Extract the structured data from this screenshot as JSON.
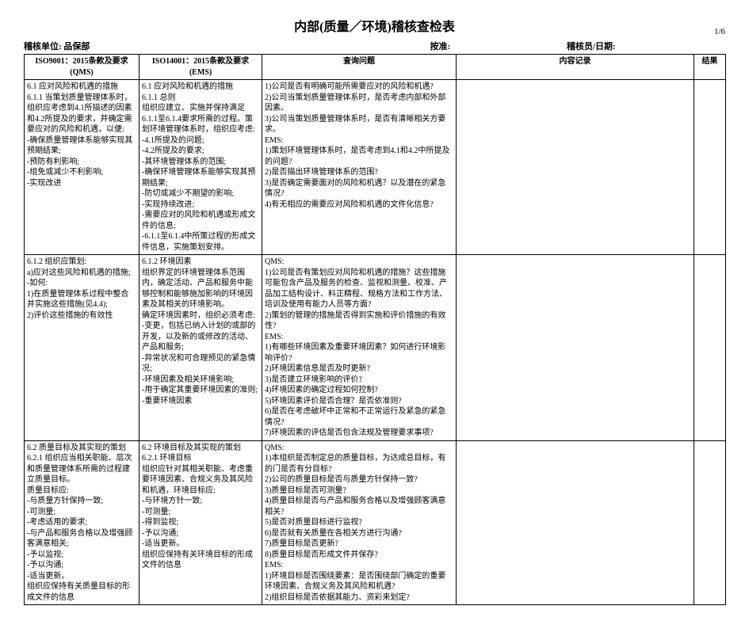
{
  "doc": {
    "title": "内部(质量／环境)稽核查检表",
    "page_indicator": "1/6",
    "unit_label": "稽核单位: ",
    "unit_value": "品保部",
    "basis_label": "按准:",
    "auditor_date_label": "稽核员/日期:"
  },
  "columns": {
    "qms": "ISO9001：2015条款及要求(QMS)",
    "ems": "ISO14001：2015条款及要求(EMS)",
    "question": "查询问题",
    "record": "内容记录",
    "result": "结果"
  },
  "rows": [
    {
      "qms": "6.1 应对风险和机遇的措施\n6.1.1 当策划质量管理体系时，组织应考虑到4.1所描述的因素和4.2所提及的要求，并确定需要应对的风险和机遇，以便:\n-确保质量管理体系能够实现其预期结果;\n-预防有利影响;\n-组免或减少不利影响;\n-实现改进",
      "ems": "6.1 应对风险和机遇的措施\n6.1.1 总则\n组织应建立、实施并保持满足6.1.1至6.1.4要求所需的过程。策划环境管理体系时，组织应考虑:\n-4.1所提及的问题;\n-4.2所提及的要求;\n-其环境管理体系的范围;\n-确保环境管理体系能够实现其预期结果;\n-防切或减少不期望的影响;\n-实现持续改进;\n-需要应对的风险和机遇或形成文件的信息;\n-6.1.1至6.1.4中所策过程的形成文件信息，实施策划安排。",
      "question": "1)公司是否有明确可能所需要应对的风险和机遇?\n2)公司当策划质量管理体系时，是否考虑内部和外部因素。\n3)公司当策划质量管理体系时，是否有清晰相关方要求。\nEMS:\n1)策划环境管理体系时，是否考虑到4.1和4.2中所提及的问题?\n2)是否描出环境管理体系的范围?\n3)是否确定需要面对的风险和机遇？以及潜在的紧急情况?\n4)有无相应的需要应对风险和机遇的文件化信息?",
      "record": "",
      "result": ""
    },
    {
      "qms": "6.1.2 组织应策划:\na)应对这些风险和机遇的措施;\n-如何:\n1)在质量管理体系过程中整合并实施这些措施(见4.4);\n2)评价这些措施的有效性",
      "ems": "6.1.2 环境因素\n组织界定的环境管理体系范围内，确定活动、产品和服务中能够控制和能够施加影响的环境因素及其相关的环境影响。\n确定环境因素时，组织必须考虑:\n-变更，包括已纳入计划的或部的开发，以及新的或修改的活动、产品和服务;\n-异常状况和可合理预见的紧急情况;\n-环境因素及相关环境影响;\n-用于确定其重要环境因素的准则;\n-重要环境因素",
      "question": "QMS:\n1)公司是否有策划应对风险和机遇的措施？这些措施可能包含产品及服务的检查、监视和测量、校准、产品加工结构设计、料正精程、规格方法和工作方法、培训及使用有能力人员等方面?\n2)策划的管理的措施是否得到实施和评价措施的有效性?\nEMS:\n1)有哪些环境因素及重要环境因素？如何进行环境影响评价?\n2)环境因素信息是否及时更新?\n3)是否建立环境影响的评价?\n4)环境因素的确定过程如何控制?\n5)环境因素评价是否合理？是否依准则?\n6)是否在考虑破坏中正常和不正常运行及紧急的紧急情况?\n7)环境因素的评估是否包含法规及管理要求事项?",
      "record": "",
      "result": ""
    },
    {
      "qms": "6.2 质量目标及其实现的策划\n6.2.1 组织应当相关职能、层次和质量管理体系所需的过程建立质量目标。\n质量目标应:\n-与质量方针保持一致;\n-可测量;\n-考虑适用的要求;\n-与产品和服务合格以及增强顾客满意相关;\n-予以监视;\n-予以沟通;\n-适当更新。\n组织应保持有关质量目标的形成文件的信息",
      "ems": "6.2 环境目标及其实现的策划\n6.2.1 环境目标\n组织应针对其相关职能、考虑重要环境因素、合规义务及其风险和机遇，环境目标应:\n-与环境方针一致;\n-可测量;\n-得到监视;\n-予以沟通;\n-适当更新。\n组织应保持有关环境目标的形成文件的信息",
      "question": "QMS:\n1)本组织是否制定总的质量目标，为达成总目标，有的门是否有分目标?\n2)公司的质量目标是否与质量方针保持一致?\n3)质量目标是否可测量?\n4)质量目标是否与产品和服务合格以及增强顾客满意相关?\n5)是否对质量目标进行监视?\n6)是否就有关质量在各相关方进行沟通?\n7)质量目标是否更新?\n8)质量目标是否形成文件并保存?\nEMS:\n1)环境目标是否围绕要素：是否围绕部门确定的重要环境因素、合规义务及其风险和机遇?\n2)组织目标是否依据其能力、资彩来划定?",
      "record": "",
      "result": ""
    }
  ]
}
